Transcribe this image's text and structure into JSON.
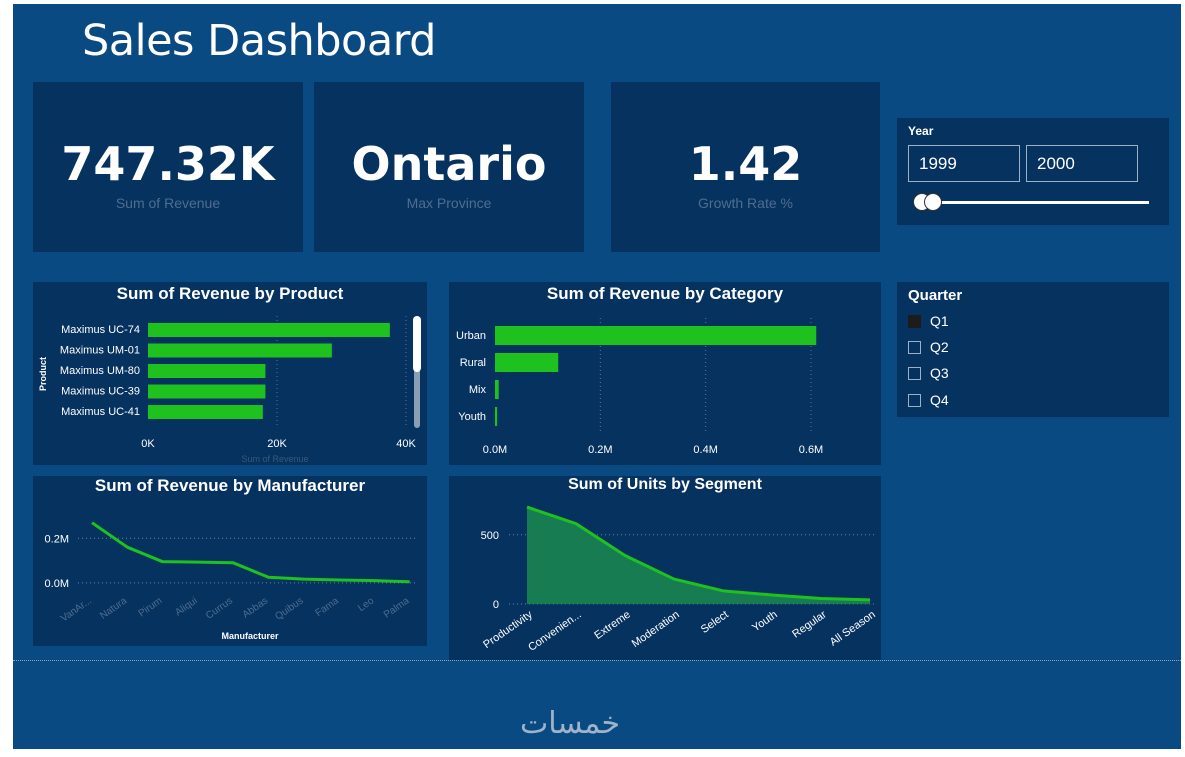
{
  "header": {
    "title": "Sales Dashboard"
  },
  "kpis": {
    "revenue": {
      "value": "747.32K",
      "label": "Sum of Revenue"
    },
    "province": {
      "value": "Ontario",
      "label": "Max Province"
    },
    "growth": {
      "value": "1.42",
      "label": "Growth Rate %"
    }
  },
  "year_slicer": {
    "title": "Year",
    "from": "1999",
    "to": "2000",
    "range_start_fraction": 0.0,
    "range_end_fraction": 0.04
  },
  "quarter_slicer": {
    "title": "Quarter",
    "options": [
      {
        "label": "Q1",
        "checked": true
      },
      {
        "label": "Q2",
        "checked": false
      },
      {
        "label": "Q3",
        "checked": false
      },
      {
        "label": "Q4",
        "checked": false
      }
    ]
  },
  "colors": {
    "background": "#0a4a83",
    "panel": "#06325f",
    "bar": "#1ec11e",
    "area_fill": "#177c52",
    "text_muted": "#4f6d8f"
  },
  "logo": {
    "text": "خمسات"
  },
  "chart_data": [
    {
      "id": "product",
      "type": "bar",
      "orientation": "horizontal",
      "title": "Sum of Revenue by Product",
      "xlabel": "Sum of Revenue",
      "ylabel": "Product",
      "categories": [
        "Maximus UC-74",
        "Maximus UM-01",
        "Maximus UM-80",
        "Maximus UC-39",
        "Maximus UC-41"
      ],
      "values": [
        37500,
        28500,
        18200,
        18200,
        17800
      ],
      "xlim": [
        0,
        40000
      ],
      "ticks": [
        {
          "label": "0K",
          "value": 0
        },
        {
          "label": "20K",
          "value": 20000
        },
        {
          "label": "40K",
          "value": 40000
        }
      ]
    },
    {
      "id": "category",
      "type": "bar",
      "orientation": "horizontal",
      "title": "Sum of Revenue by Category",
      "categories": [
        "Urban",
        "Rural",
        "Mix",
        "Youth"
      ],
      "values": [
        0.61,
        0.12,
        0.007,
        0.004
      ],
      "xlim": [
        0,
        0.6
      ],
      "ticks": [
        {
          "label": "0.0M",
          "value": 0
        },
        {
          "label": "0.2M",
          "value": 0.2
        },
        {
          "label": "0.4M",
          "value": 0.4
        },
        {
          "label": "0.6M",
          "value": 0.6
        }
      ]
    },
    {
      "id": "manufacturer",
      "type": "line",
      "title": "Sum of Revenue by Manufacturer",
      "xlabel": "Manufacturer",
      "categories": [
        "VanAr...",
        "Natura",
        "Pirum",
        "Aliqui",
        "Currus",
        "Abbas",
        "Quibus",
        "Fama",
        "Leo",
        "Palma"
      ],
      "values": [
        0.27,
        0.16,
        0.095,
        0.093,
        0.09,
        0.025,
        0.017,
        0.013,
        0.01,
        0.005
      ],
      "ylim": [
        -0.05,
        0.3
      ],
      "ticks": [
        {
          "label": "0.0M",
          "value": 0
        },
        {
          "label": "0.2M",
          "value": 0.2
        }
      ]
    },
    {
      "id": "segment",
      "type": "area",
      "title": "Sum of Units by Segment",
      "categories": [
        "Productivity",
        "Convenien...",
        "Extreme",
        "Moderation",
        "Select",
        "Youth",
        "Regular",
        "All Season"
      ],
      "values": [
        700,
        580,
        350,
        180,
        95,
        65,
        40,
        30
      ],
      "ylim": [
        0,
        780
      ],
      "ticks": [
        {
          "label": "0",
          "value": 0
        },
        {
          "label": "500",
          "value": 500
        }
      ]
    }
  ]
}
